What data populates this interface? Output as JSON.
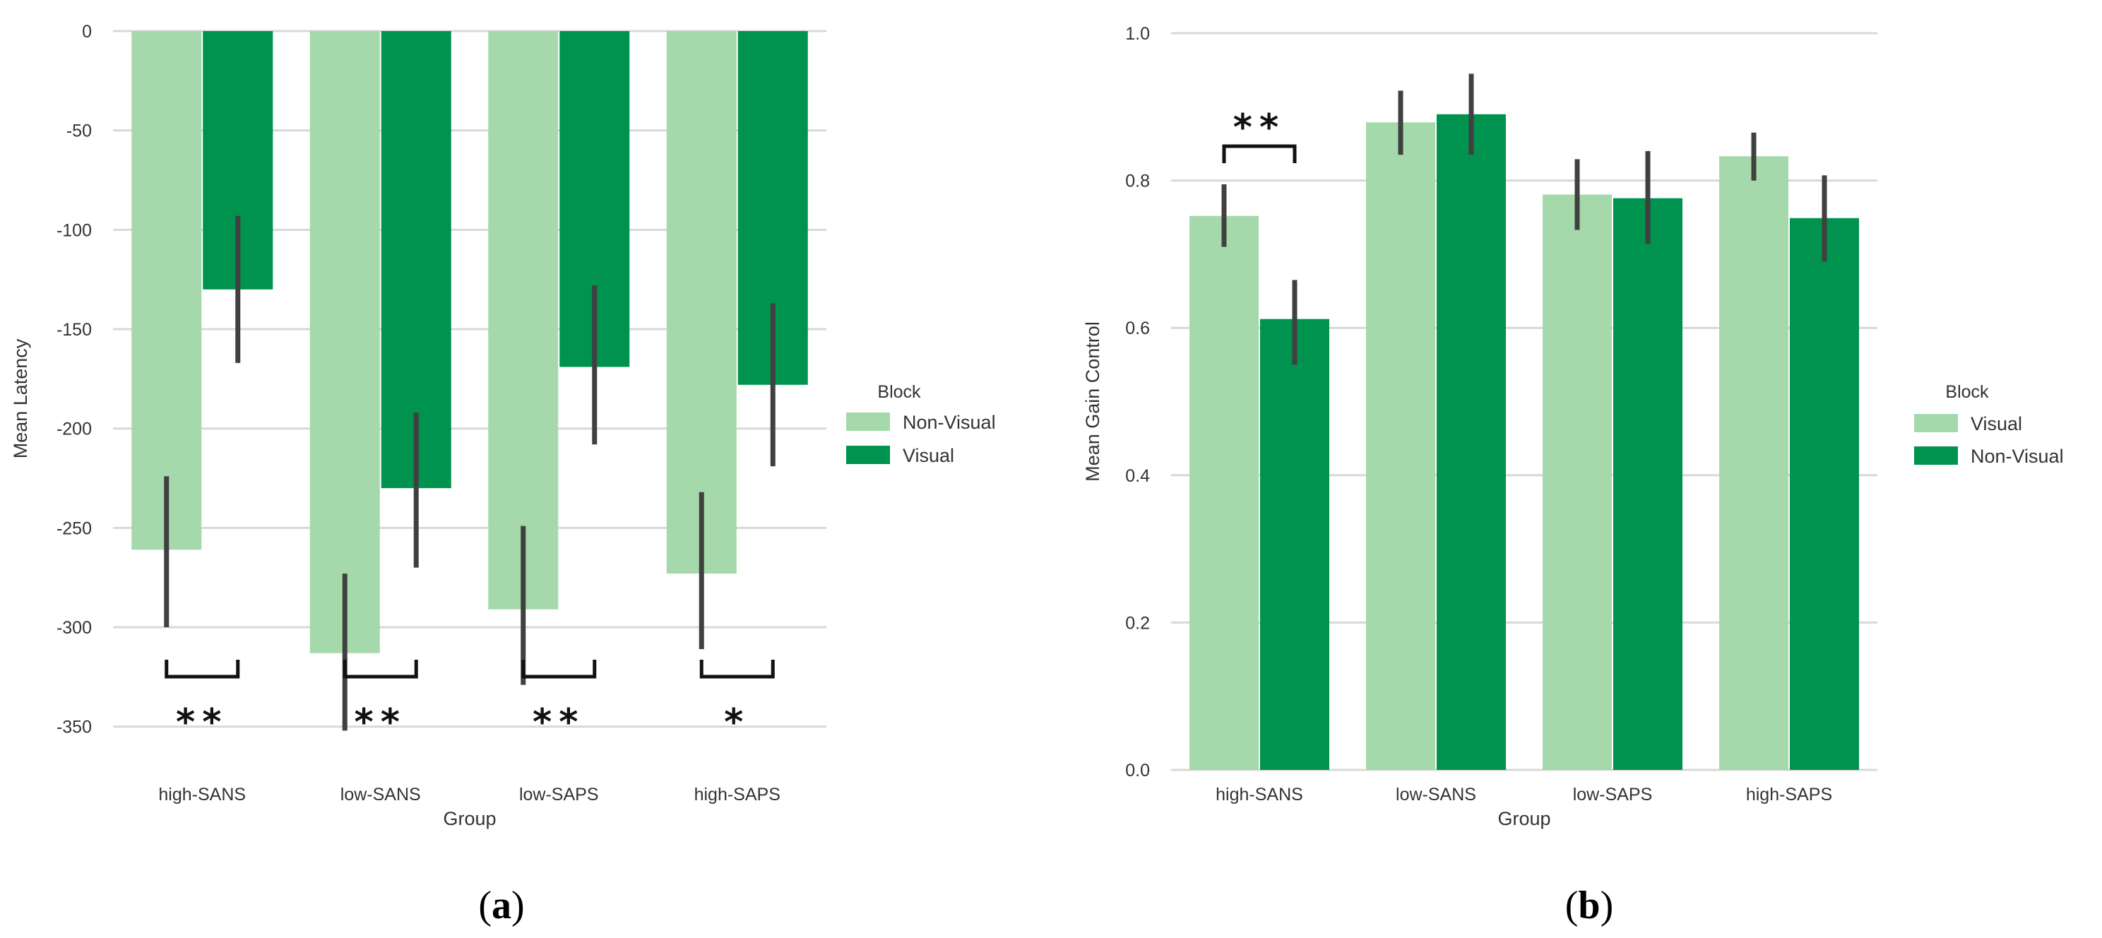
{
  "colors": {
    "light": "#a5d9ab",
    "dark": "#00924f",
    "err": "#404040",
    "grid": "#d8d8d8"
  },
  "panel_labels": [
    {
      "open": "(",
      "letter": "a",
      "close": ")"
    },
    {
      "open": "(",
      "letter": "b",
      "close": ")"
    }
  ],
  "chart_data": [
    {
      "type": "bar",
      "xlabel": "Group",
      "ylabel": "Mean Latency",
      "ylim": [
        -370,
        0
      ],
      "yticks": [
        0,
        -50,
        -100,
        -150,
        -200,
        -250,
        -300,
        -350
      ],
      "ytick_labels": [
        "0",
        "-50",
        "-100",
        "-150",
        "-200",
        "-250",
        "-300",
        "-350"
      ],
      "categories": [
        "high-SANS",
        "low-SANS",
        "low-SAPS",
        "high-SAPS"
      ],
      "legend": {
        "title": "Block",
        "position": "right"
      },
      "series": [
        {
          "name": "Non-Visual",
          "color": "#a5d9ab",
          "values": [
            -261,
            -313,
            -291,
            -273
          ],
          "ci_low": [
            -300,
            -352,
            -329,
            -311
          ],
          "ci_high": [
            -224,
            -273,
            -249,
            -232
          ]
        },
        {
          "name": "Visual",
          "color": "#00924f",
          "values": [
            -130,
            -230,
            -169,
            -178
          ],
          "ci_low": [
            -167,
            -270,
            -208,
            -219
          ],
          "ci_high": [
            -93,
            -192,
            -128,
            -137
          ]
        }
      ],
      "significance": [
        {
          "category": "high-SANS",
          "label": "**",
          "side": "below"
        },
        {
          "category": "low-SANS",
          "label": "**",
          "side": "below"
        },
        {
          "category": "low-SAPS",
          "label": "**",
          "side": "below"
        },
        {
          "category": "high-SAPS",
          "label": "*",
          "side": "below"
        }
      ]
    },
    {
      "type": "bar",
      "xlabel": "Group",
      "ylabel": "Mean Gain Control",
      "ylim": [
        0,
        1.0
      ],
      "yticks": [
        0,
        0.2,
        0.4,
        0.6,
        0.8,
        1.0
      ],
      "ytick_labels": [
        "0.0",
        "0.2",
        "0.4",
        "0.6",
        "0.8",
        "1.0"
      ],
      "categories": [
        "high-SANS",
        "low-SANS",
        "low-SAPS",
        "high-SAPS"
      ],
      "legend": {
        "title": "Block",
        "position": "right"
      },
      "series": [
        {
          "name": "Visual",
          "color": "#a5d9ab",
          "values": [
            0.752,
            0.879,
            0.781,
            0.833
          ],
          "ci_low": [
            0.71,
            0.835,
            0.733,
            0.8
          ],
          "ci_high": [
            0.795,
            0.922,
            0.829,
            0.865
          ]
        },
        {
          "name": "Non-Visual",
          "color": "#00924f",
          "values": [
            0.612,
            0.89,
            0.776,
            0.749
          ],
          "ci_low": [
            0.55,
            0.835,
            0.714,
            0.69
          ],
          "ci_high": [
            0.665,
            0.945,
            0.84,
            0.807
          ]
        }
      ],
      "significance": [
        {
          "category": "high-SANS",
          "label": "**",
          "side": "above"
        }
      ]
    }
  ]
}
